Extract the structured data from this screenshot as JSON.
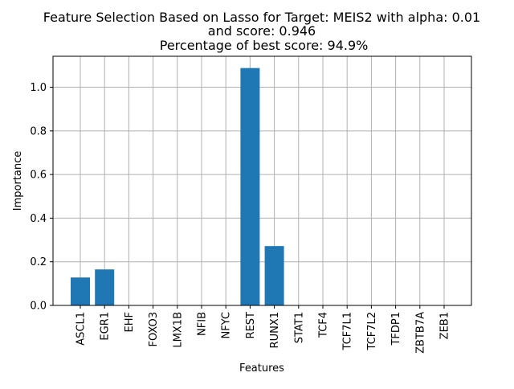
{
  "chart_data": {
    "type": "bar",
    "title_lines": [
      "Feature Selection Based on Lasso for Target: MEIS2 with alpha: 0.01",
      "and score: 0.946",
      " Percentage of best score: 94.9%"
    ],
    "xlabel": "Features",
    "ylabel": "Importance",
    "categories": [
      "ASCL1",
      "EGR1",
      "EHF",
      "FOXO3",
      "LMX1B",
      "NFIB",
      "NFYC",
      "REST",
      "RUNX1",
      "STAT1",
      "TCF4",
      "TCF7L1",
      "TCF7L2",
      "TFDP1",
      "ZBTB7A",
      "ZEB1"
    ],
    "values": [
      0.128,
      0.165,
      0,
      0,
      0,
      0,
      0,
      1.088,
      0.272,
      0,
      0,
      0,
      0,
      0,
      0,
      0
    ],
    "ylim": [
      0,
      1.142
    ],
    "yticks": [
      0.0,
      0.2,
      0.4,
      0.6,
      0.8,
      1.0
    ],
    "ytick_labels": [
      "0.0",
      "0.2",
      "0.4",
      "0.6",
      "0.8",
      "1.0"
    ],
    "grid": true,
    "bar_color": "#1f77b4",
    "grid_color": "#b0b0b0"
  }
}
